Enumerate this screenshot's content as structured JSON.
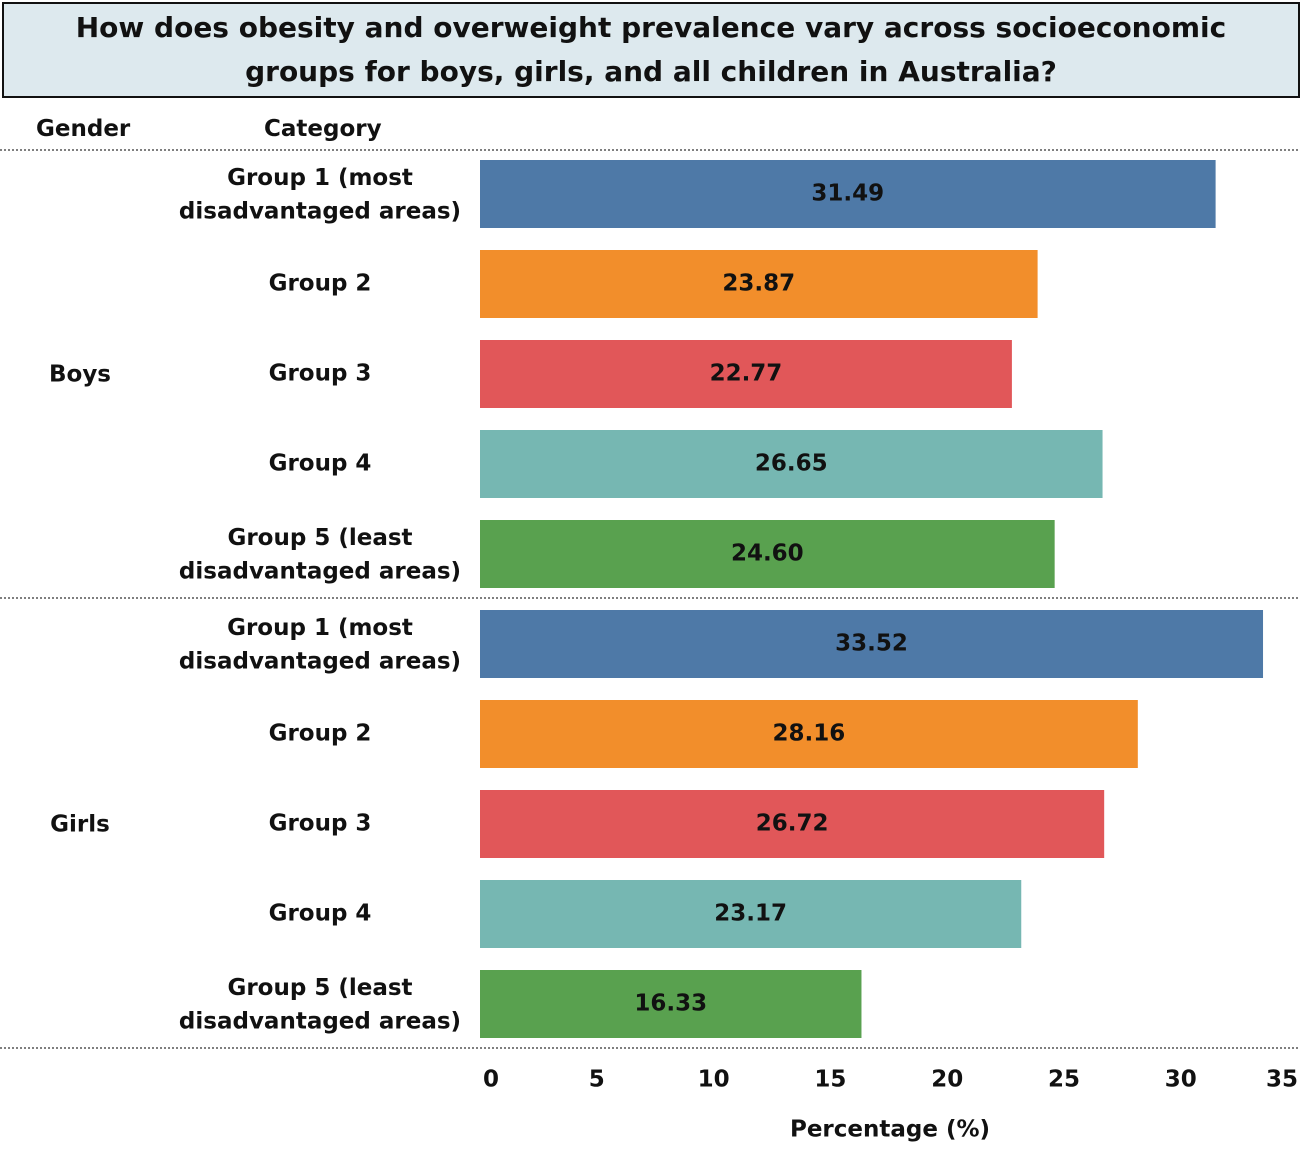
{
  "chart_data": {
    "type": "bar",
    "orientation": "horizontal",
    "title": "How does obesity and overweight prevalence vary across socioeconomic groups for boys, girls, and all children in Australia?",
    "row_headers": [
      "Gender",
      "Category"
    ],
    "xlabel": "Percentage (%)",
    "xlim": [
      0,
      35
    ],
    "xticks": [
      "0",
      "5",
      "10",
      "15",
      "20",
      "25",
      "30",
      "35"
    ],
    "colors": {
      "Group 1 (most disadvantaged areas)": "#4e79a7",
      "Group 2": "#f28e2b",
      "Group 3": "#e15759",
      "Group 4": "#76b7b2",
      "Group 5 (least disadvantaged areas)": "#59a14f"
    },
    "groups": [
      {
        "gender": "Boys",
        "rows": [
          {
            "category": "Group 1 (most disadvantaged areas)",
            "value": 31.49,
            "label": "31.49"
          },
          {
            "category": "Group 2",
            "value": 23.87,
            "label": "23.87"
          },
          {
            "category": "Group 3",
            "value": 22.77,
            "label": "22.77"
          },
          {
            "category": "Group 4",
            "value": 26.65,
            "label": "26.65"
          },
          {
            "category": "Group 5 (least disadvantaged areas)",
            "value": 24.6,
            "label": "24.60"
          }
        ]
      },
      {
        "gender": "Girls",
        "rows": [
          {
            "category": "Group 1 (most disadvantaged areas)",
            "value": 33.52,
            "label": "33.52"
          },
          {
            "category": "Group 2",
            "value": 28.16,
            "label": "28.16"
          },
          {
            "category": "Group 3",
            "value": 26.72,
            "label": "26.72"
          },
          {
            "category": "Group 4",
            "value": 23.17,
            "label": "23.17"
          },
          {
            "category": "Group 5 (least disadvantaged areas)",
            "value": 16.33,
            "label": "16.33"
          }
        ]
      }
    ]
  }
}
